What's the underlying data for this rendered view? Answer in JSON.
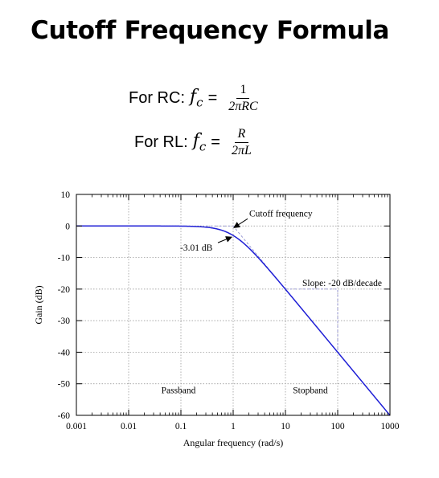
{
  "title": "Cutoff Frequency Formula",
  "formulas": {
    "rc": {
      "label": "For RC:",
      "symbol": "f",
      "subscript": "c",
      "equals": "=",
      "numerator": "1",
      "denominator": "2πRC"
    },
    "rl": {
      "label": "For RL:",
      "symbol": "f",
      "subscript": "c",
      "equals": "=",
      "numerator": "R",
      "denominator": "2πL"
    }
  },
  "chart_data": {
    "type": "line",
    "xlabel": "Angular frequency (rad/s)",
    "ylabel": "Gain (dB)",
    "xscale": "log",
    "xlim": [
      0.001,
      1000
    ],
    "ylim": [
      -60,
      10
    ],
    "xticks": [
      0.001,
      0.01,
      0.1,
      1,
      10,
      100,
      1000
    ],
    "xtick_labels": [
      "0.001",
      "0.01",
      "0.1",
      "1",
      "10",
      "100",
      "1000"
    ],
    "yticks": [
      10,
      0,
      -10,
      -20,
      -30,
      -40,
      -50,
      -60
    ],
    "ytick_labels": [
      "10",
      "0",
      "-10",
      "-20",
      "-30",
      "-40",
      "-50",
      "-60"
    ],
    "grid": true,
    "series": [
      {
        "function": "-10*log10(1+w^2)",
        "color": "#1f1fd6"
      }
    ],
    "asymptotes": [
      {
        "x": [
          0.3,
          1,
          1000
        ],
        "y": [
          0,
          0,
          -60
        ],
        "style": "dashed"
      }
    ],
    "guides": [
      {
        "x": [
          10,
          100,
          100
        ],
        "y": [
          -20,
          -20,
          -40
        ],
        "style": "dashed"
      }
    ],
    "annotations": [
      {
        "text": "Cutoff frequency",
        "x": 1,
        "y": 0,
        "arrow": true
      },
      {
        "text": "-3.01 dB",
        "x": 1,
        "y": -3.01,
        "arrow": true
      },
      {
        "text": "Slope: -20 dB/decade",
        "x": 100,
        "y": -20,
        "arrow": false
      },
      {
        "text": "Passband",
        "x": 0.03,
        "y": -53,
        "arrow": false
      },
      {
        "text": "Stopband",
        "x": 30,
        "y": -53,
        "arrow": false
      }
    ]
  }
}
